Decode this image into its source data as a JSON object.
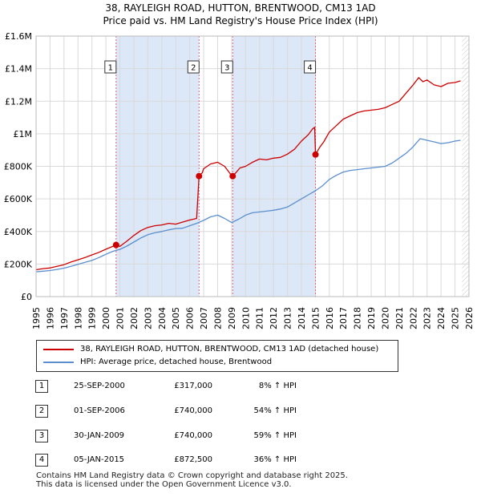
{
  "title_line1": "38, RAYLEIGH ROAD, HUTTON, BRENTWOOD, CM13 1AD",
  "title_line2": "Price paid vs. HM Land Registry's House Price Index (HPI)",
  "chart_data": {
    "type": "line",
    "title": "38, RAYLEIGH ROAD, HUTTON, BRENTWOOD, CM13 1AD — Price paid vs. HM Land Registry's House Price Index (HPI)",
    "xlim": [
      1995,
      2026
    ],
    "ylim": [
      0,
      1600000
    ],
    "y_ticks": [
      0,
      200000,
      400000,
      600000,
      800000,
      1000000,
      1200000,
      1400000,
      1600000
    ],
    "y_tick_labels": [
      "£0",
      "£200K",
      "£400K",
      "£600K",
      "£800K",
      "£1M",
      "£1.2M",
      "£1.4M",
      "£1.6M"
    ],
    "x_ticks": [
      1995,
      1996,
      1997,
      1998,
      1999,
      2000,
      2001,
      2002,
      2003,
      2004,
      2005,
      2006,
      2007,
      2008,
      2009,
      2010,
      2011,
      2012,
      2013,
      2014,
      2015,
      2016,
      2017,
      2018,
      2019,
      2020,
      2021,
      2022,
      2023,
      2024,
      2025,
      2026
    ],
    "colors": {
      "property": "#cc0000",
      "hpi": "#5b8fd0",
      "shade": "#dce7f7",
      "marker_line": "#e06080"
    },
    "series": [
      {
        "name": "38, RAYLEIGH ROAD, HUTTON, BRENTWOOD, CM13 1AD (detached house)",
        "color": "#cc0000",
        "x": [
          1995,
          1995.5,
          1996,
          1996.5,
          1997,
          1997.5,
          1998,
          1998.5,
          1999,
          1999.5,
          2000,
          2000.4,
          2000.73,
          2001,
          2001.5,
          2002,
          2002.5,
          2003,
          2003.5,
          2004,
          2004.5,
          2005,
          2005.5,
          2006,
          2006.5,
          2006.67,
          2006.9,
          2007,
          2007.5,
          2008,
          2008.5,
          2008.9,
          2009.08,
          2009.3,
          2009.6,
          2010,
          2010.5,
          2011,
          2011.5,
          2012,
          2012.5,
          2013,
          2013.5,
          2014,
          2014.5,
          2014.8,
          2014.95,
          2015.01,
          2015.3,
          2015.6,
          2016,
          2016.5,
          2017,
          2017.5,
          2018,
          2018.5,
          2019,
          2019.5,
          2020,
          2020.5,
          2021,
          2021.5,
          2022,
          2022.4,
          2022.7,
          2023,
          2023.5,
          2024,
          2024.5,
          2025,
          2025.4
        ],
        "y": [
          165000,
          172000,
          176000,
          186000,
          196000,
          212000,
          226000,
          240000,
          256000,
          272000,
          291000,
          305000,
          317000,
          308000,
          340000,
          375000,
          405000,
          425000,
          435000,
          440000,
          450000,
          445000,
          458000,
          470000,
          480000,
          740000,
          760000,
          785000,
          815000,
          825000,
          800000,
          755000,
          740000,
          760000,
          790000,
          800000,
          825000,
          845000,
          840000,
          850000,
          855000,
          875000,
          905000,
          955000,
          995000,
          1030000,
          1040000,
          872500,
          915000,
          950000,
          1010000,
          1050000,
          1090000,
          1110000,
          1130000,
          1140000,
          1145000,
          1150000,
          1160000,
          1180000,
          1200000,
          1250000,
          1300000,
          1345000,
          1320000,
          1330000,
          1300000,
          1290000,
          1310000,
          1315000,
          1325000
        ]
      },
      {
        "name": "HPI: Average price, detached house, Brentwood",
        "color": "#5b8fd0",
        "x": [
          1995,
          1995.5,
          1996,
          1996.5,
          1997,
          1997.5,
          1998,
          1998.5,
          1999,
          1999.5,
          2000,
          2000.5,
          2001,
          2001.5,
          2002,
          2002.5,
          2003,
          2003.5,
          2004,
          2004.5,
          2005,
          2005.5,
          2006,
          2006.5,
          2007,
          2007.5,
          2008,
          2008.5,
          2009,
          2009.5,
          2010,
          2010.5,
          2011,
          2011.5,
          2012,
          2012.5,
          2013,
          2013.5,
          2014,
          2014.5,
          2015,
          2015.5,
          2016,
          2016.5,
          2017,
          2017.5,
          2018,
          2018.5,
          2019,
          2019.5,
          2020,
          2020.5,
          2021,
          2021.5,
          2022,
          2022.5,
          2023,
          2023.5,
          2024,
          2024.5,
          2025,
          2025.4
        ],
        "y": [
          152000,
          156000,
          160000,
          167000,
          175000,
          186000,
          198000,
          210000,
          222000,
          240000,
          260000,
          278000,
          290000,
          310000,
          335000,
          360000,
          380000,
          392000,
          400000,
          410000,
          418000,
          420000,
          435000,
          450000,
          468000,
          490000,
          500000,
          480000,
          455000,
          475000,
          500000,
          515000,
          520000,
          525000,
          530000,
          538000,
          550000,
          575000,
          600000,
          625000,
          650000,
          680000,
          720000,
          745000,
          765000,
          775000,
          780000,
          785000,
          790000,
          795000,
          800000,
          820000,
          850000,
          880000,
          920000,
          970000,
          960000,
          950000,
          940000,
          945000,
          955000,
          960000
        ]
      }
    ],
    "sales": [
      {
        "num": "1",
        "date": "25-SEP-2000",
        "x": 2000.73,
        "price": 317000,
        "price_label": "£317,000",
        "hpi_change": "8% ↑ HPI"
      },
      {
        "num": "2",
        "date": "01-SEP-2006",
        "x": 2006.67,
        "price": 740000,
        "price_label": "£740,000",
        "hpi_change": "54% ↑ HPI"
      },
      {
        "num": "3",
        "date": "30-JAN-2009",
        "x": 2009.08,
        "price": 740000,
        "price_label": "£740,000",
        "hpi_change": "59% ↑ HPI"
      },
      {
        "num": "4",
        "date": "05-JAN-2015",
        "x": 2015.01,
        "price": 872500,
        "price_label": "£872,500",
        "hpi_change": "36% ↑ HPI"
      }
    ]
  },
  "legend": {
    "property_label": "38, RAYLEIGH ROAD, HUTTON, BRENTWOOD, CM13 1AD (detached house)",
    "hpi_label": "HPI: Average price, detached house, Brentwood"
  },
  "table": [
    {
      "num": "1",
      "date": "25-SEP-2000",
      "price": "£317,000",
      "pct": "8% ↑ HPI"
    },
    {
      "num": "2",
      "date": "01-SEP-2006",
      "price": "£740,000",
      "pct": "54% ↑ HPI"
    },
    {
      "num": "3",
      "date": "30-JAN-2009",
      "price": "£740,000",
      "pct": "59% ↑ HPI"
    },
    {
      "num": "4",
      "date": "05-JAN-2015",
      "price": "£872,500",
      "pct": "36% ↑ HPI"
    }
  ],
  "footer": {
    "line1": "Contains HM Land Registry data © Crown copyright and database right 2025.",
    "line2": "This data is licensed under the Open Government Licence v3.0."
  }
}
